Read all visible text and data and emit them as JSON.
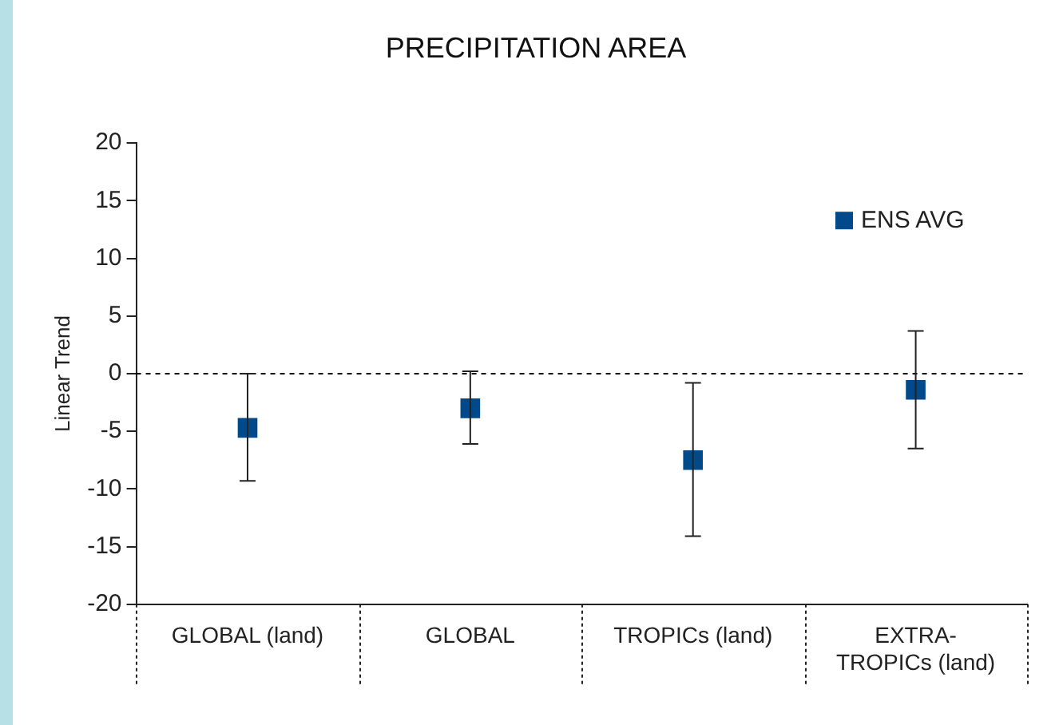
{
  "chart_data": {
    "type": "scatter",
    "title": "PRECIPITATION AREA",
    "ylabel": "Linear Trend",
    "categories": [
      "GLOBAL (land)",
      "GLOBAL",
      "TROPICs (land)",
      "EXTRA-TROPICs (land)"
    ],
    "series": [
      {
        "name": "ENS AVG",
        "color": "#004a8c",
        "values": [
          -4.7,
          -3.0,
          -7.5,
          -1.4
        ],
        "errors": [
          [
            -9.3,
            0
          ],
          [
            -6.1,
            0.2
          ],
          [
            -14.1,
            -0.8
          ],
          [
            -6.5,
            3.7
          ]
        ]
      }
    ],
    "ylim": [
      -20,
      20
    ],
    "yticks": [
      -20,
      -15,
      -10,
      -5,
      0,
      5,
      10,
      15,
      20
    ],
    "ref_lines": [
      {
        "axis": "y",
        "value": 0,
        "line_style": "dashed",
        "color": "#000000"
      }
    ],
    "marker": "square",
    "legend": "top right",
    "grid": false
  }
}
